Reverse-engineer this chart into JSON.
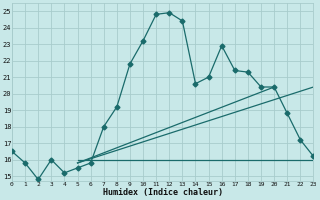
{
  "xlabel": "Humidex (Indice chaleur)",
  "xlim": [
    0,
    23
  ],
  "ylim": [
    14.7,
    25.5
  ],
  "xticks": [
    0,
    1,
    2,
    3,
    4,
    5,
    6,
    7,
    8,
    9,
    10,
    11,
    12,
    13,
    14,
    15,
    16,
    17,
    18,
    19,
    20,
    21,
    22,
    23
  ],
  "yticks": [
    15,
    16,
    17,
    18,
    19,
    20,
    21,
    22,
    23,
    24,
    25
  ],
  "bg_color": "#c8e8e8",
  "grid_color": "#a8cccc",
  "line_color": "#1a6b6b",
  "line1_x": [
    0,
    1,
    2,
    3,
    4,
    5,
    6,
    7,
    8,
    9,
    10,
    11,
    12,
    13,
    14,
    15,
    16,
    17,
    18,
    19,
    20,
    21,
    22,
    23
  ],
  "line1_y": [
    16.5,
    15.8,
    14.8,
    16.0,
    15.2,
    15.5,
    15.8,
    18.0,
    19.2,
    21.8,
    23.2,
    24.8,
    24.9,
    24.4,
    20.6,
    21.0,
    22.9,
    21.4,
    21.3,
    20.4,
    20.4,
    18.8,
    17.2,
    16.2
  ],
  "line2_x": [
    5,
    23
  ],
  "line2_y": [
    15.8,
    20.4
  ],
  "line3_x": [
    5,
    20
  ],
  "line3_y": [
    15.8,
    20.4
  ],
  "line4_x": [
    5,
    23
  ],
  "line4_y": [
    16.0,
    16.0
  ],
  "markersize": 2.5,
  "linewidth": 0.9
}
